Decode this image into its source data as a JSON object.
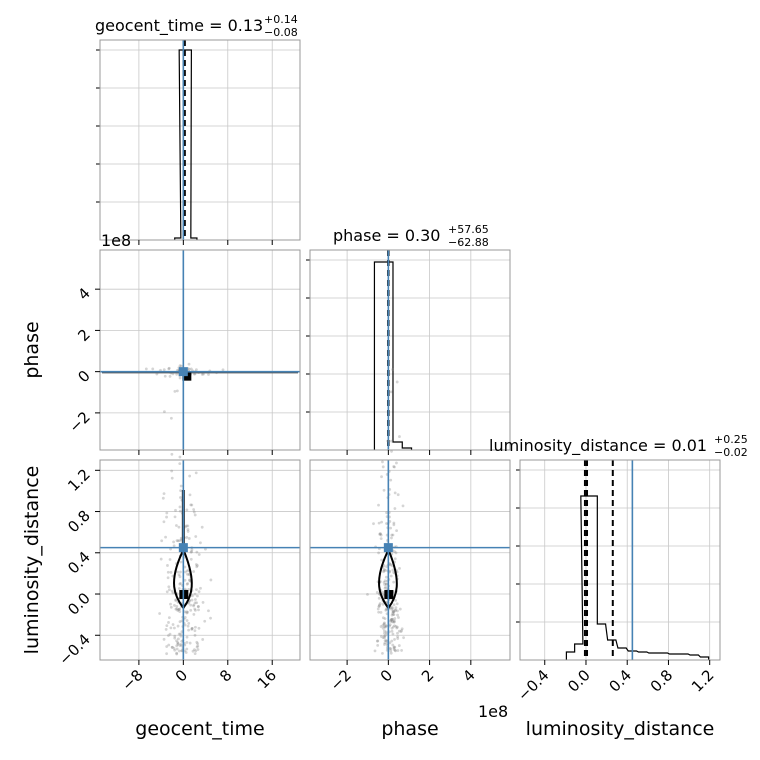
{
  "chart_data": {
    "type": "corner",
    "parameters": [
      "geocent_time",
      "phase",
      "luminosity_distance"
    ],
    "truth_color": "#4682b4",
    "grid": true,
    "panel_titles": [
      {
        "name": "geocent_time",
        "median": "0.13",
        "plus": "+0.14",
        "minus": "−0.08"
      },
      {
        "name": "phase",
        "median": "0.30",
        "plus": "+57.65",
        "minus": "−62.88"
      },
      {
        "name": "luminosity_distance",
        "median": "0.01",
        "plus": "+0.25",
        "minus": "−0.02"
      }
    ],
    "axes": {
      "geocent_time": {
        "label": "geocent_time",
        "range": [
          -15,
          21
        ],
        "ticks": [
          -8,
          0,
          8,
          16
        ],
        "tick_labels": [
          "−8",
          "0",
          "8",
          "16"
        ],
        "truth": 0,
        "quantiles": [
          0.05,
          0.13,
          0.27
        ]
      },
      "phase": {
        "label": "phase",
        "range": [
          -3.8,
          5.9
        ],
        "ticks": [
          -2,
          0,
          2,
          4
        ],
        "tick_labels": [
          "−2",
          "0",
          "2",
          "4"
        ],
        "offset_text": "1e8",
        "truth": 0,
        "quantiles": [
          -0.01,
          0.0,
          0.01
        ]
      },
      "luminosity_distance": {
        "label": "luminosity_distance",
        "range": [
          -0.64,
          1.3
        ],
        "ticks": [
          -0.4,
          0.0,
          0.4,
          0.8,
          1.2
        ],
        "tick_labels": [
          "−0.4",
          "0.0",
          "0.4",
          "0.8",
          "1.2"
        ],
        "truth": 0.45,
        "quantiles": [
          -0.01,
          0.01,
          0.26
        ]
      }
    },
    "histograms": {
      "geocent_time": {
        "bins": [
          [
            -1,
            0.01
          ],
          [
            -0.2,
            0.95
          ],
          [
            0.9,
            0.95
          ],
          [
            1.9,
            0.01
          ]
        ],
        "bin_width": 1.1
      },
      "phase": {
        "bins": [
          [
            -0.45,
            0.94
          ],
          [
            0.0,
            0.94
          ],
          [
            0.45,
            0.04
          ],
          [
            0.9,
            0.01
          ]
        ],
        "bin_width": 0.45
      },
      "luminosity_distance": {
        "bins": [
          [
            -0.15,
            0.04
          ],
          [
            -0.07,
            0.08
          ],
          [
            -0.01,
            0.82
          ],
          [
            0.07,
            0.82
          ],
          [
            0.15,
            0.18
          ],
          [
            0.25,
            0.1
          ],
          [
            0.35,
            0.06
          ],
          [
            0.45,
            0.045
          ],
          [
            0.55,
            0.04
          ],
          [
            0.65,
            0.035
          ],
          [
            0.75,
            0.035
          ],
          [
            0.85,
            0.03
          ],
          [
            0.95,
            0.03
          ],
          [
            1.05,
            0.025
          ],
          [
            1.15,
            0.015
          ]
        ],
        "bin_width": 0.08
      }
    }
  }
}
